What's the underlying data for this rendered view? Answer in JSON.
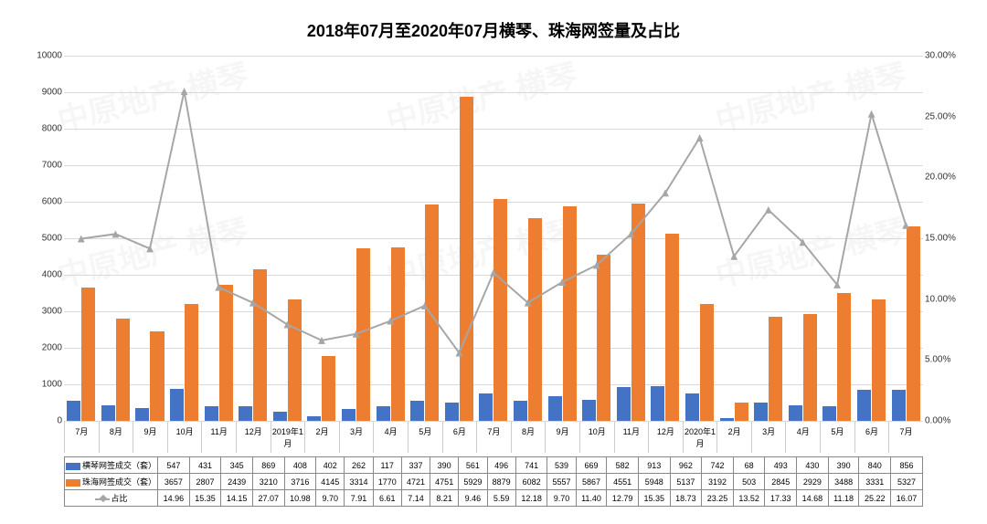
{
  "title": "2018年07月至2020年07月横琴、珠海网签量及占比",
  "title_fontsize": 18,
  "background_color": "#ffffff",
  "grid_color": "#d9d9d9",
  "axis_color": "#888888",
  "watermark_text": "中原地产 横琴",
  "watermark_color": "#ededed",
  "y_left": {
    "min": 0,
    "max": 10000,
    "step": 1000
  },
  "y_right": {
    "min": 0,
    "max": 30,
    "step": 5,
    "format_suffix": "%",
    "decimals": 2
  },
  "categories": [
    "7月",
    "8月",
    "9月",
    "10月",
    "11月",
    "12月",
    "2019年1月",
    "2月",
    "3月",
    "4月",
    "5月",
    "6月",
    "7月",
    "8月",
    "9月",
    "10月",
    "11月",
    "12月",
    "2020年1月",
    "2月",
    "3月",
    "4月",
    "5月",
    "6月",
    "7月"
  ],
  "series": [
    {
      "key": "hengqin",
      "name": "横琴网签成交（套）",
      "type": "bar",
      "color": "#4472c4",
      "axis": "left",
      "data": [
        547,
        431,
        345,
        869,
        408,
        402,
        262,
        117,
        337,
        390,
        561,
        496,
        741,
        539,
        669,
        582,
        913,
        962,
        742,
        68,
        493,
        430,
        390,
        840,
        856
      ]
    },
    {
      "key": "zhuhai",
      "name": "珠海网签成交（套）",
      "type": "bar",
      "color": "#ed7d31",
      "axis": "left",
      "data": [
        3657,
        2807,
        2439,
        3210,
        3716,
        4145,
        3314,
        1770,
        4721,
        4751,
        5929,
        8879,
        6082,
        5557,
        5867,
        4551,
        5948,
        5137,
        3192,
        503,
        2845,
        2929,
        3488,
        3331,
        5327
      ]
    },
    {
      "key": "ratio",
      "name": "占比",
      "type": "line",
      "color": "#a6a6a6",
      "marker": "triangle",
      "line_width": 2,
      "axis": "right",
      "decimals": 2,
      "data": [
        14.96,
        15.35,
        14.15,
        27.07,
        10.98,
        9.7,
        7.91,
        6.61,
        7.14,
        8.21,
        9.46,
        5.59,
        12.18,
        9.7,
        11.4,
        12.79,
        15.35,
        18.73,
        23.25,
        13.52,
        17.33,
        14.68,
        11.18,
        25.22,
        16.07
      ]
    }
  ]
}
